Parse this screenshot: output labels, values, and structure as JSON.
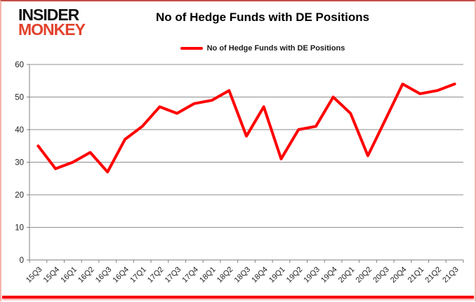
{
  "logo": {
    "line1": "INSIDER",
    "line2": "MONKEY",
    "line1_color": "#111111",
    "line2_color": "#e2422d"
  },
  "chart_data": {
    "type": "line",
    "title": "No of Hedge Funds with DE Positions",
    "legend": "No of Hedge Funds with DE Positions",
    "categories": [
      "15Q3",
      "15Q4",
      "16Q1",
      "16Q2",
      "16Q3",
      "16Q4",
      "17Q1",
      "17Q2",
      "17Q3",
      "17Q4",
      "18Q1",
      "18Q2",
      "18Q3",
      "18Q4",
      "19Q1",
      "19Q2",
      "19Q3",
      "19Q4",
      "20Q1",
      "20Q2",
      "20Q3",
      "20Q4",
      "21Q1",
      "21Q2",
      "21Q3"
    ],
    "values": [
      35,
      28,
      30,
      33,
      27,
      37,
      41,
      47,
      45,
      48,
      49,
      52,
      38,
      47,
      31,
      40,
      41,
      50,
      45,
      32,
      43,
      54,
      51,
      52,
      54
    ],
    "xlabel": "",
    "ylabel": "",
    "ylim": [
      0,
      60
    ],
    "yticks": [
      0,
      10,
      20,
      30,
      40,
      50,
      60
    ],
    "grid": true,
    "legend_position": "top-center",
    "line_color": "#ff0000",
    "gridline_color": "#8e8e8e",
    "axis_color": "#7f7f7f",
    "label_color": "#1f1f1f"
  }
}
